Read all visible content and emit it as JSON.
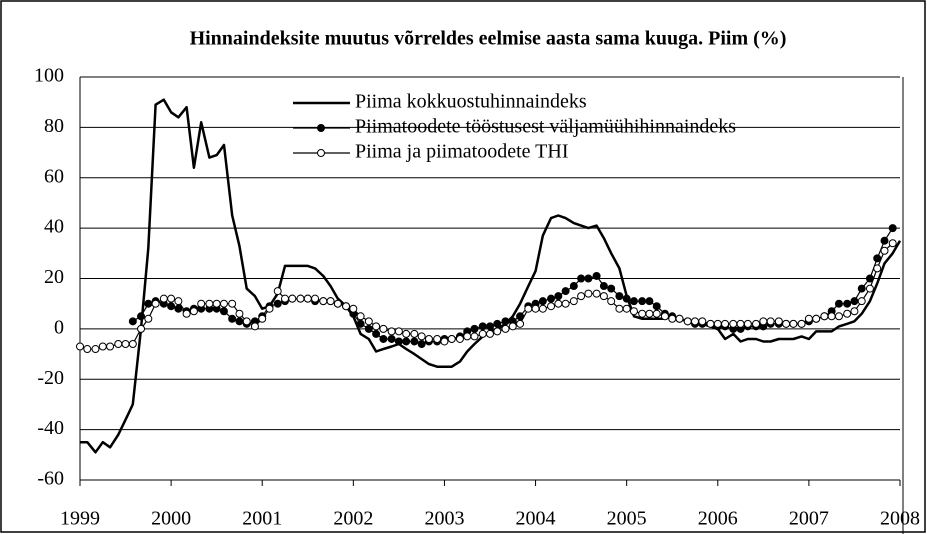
{
  "chart_data": {
    "type": "line",
    "title": "Hinnaindeksite muutus võrreldes eelmise aasta sama kuuga. Piim (%)",
    "x": [
      1999.0,
      1999.08,
      1999.17,
      1999.25,
      1999.33,
      1999.42,
      1999.5,
      1999.58,
      1999.67,
      1999.75,
      1999.83,
      1999.92,
      2000.0,
      2000.08,
      2000.17,
      2000.25,
      2000.33,
      2000.42,
      2000.5,
      2000.58,
      2000.67,
      2000.75,
      2000.83,
      2000.92,
      2001.0,
      2001.08,
      2001.17,
      2001.25,
      2001.33,
      2001.42,
      2001.5,
      2001.58,
      2001.67,
      2001.75,
      2001.83,
      2001.92,
      2002.0,
      2002.08,
      2002.17,
      2002.25,
      2002.33,
      2002.42,
      2002.5,
      2002.58,
      2002.67,
      2002.75,
      2002.83,
      2002.92,
      2003.0,
      2003.08,
      2003.17,
      2003.25,
      2003.33,
      2003.42,
      2003.5,
      2003.58,
      2003.67,
      2003.75,
      2003.83,
      2003.92,
      2004.0,
      2004.08,
      2004.17,
      2004.25,
      2004.33,
      2004.42,
      2004.5,
      2004.58,
      2004.67,
      2004.75,
      2004.83,
      2004.92,
      2005.0,
      2005.08,
      2005.17,
      2005.25,
      2005.33,
      2005.42,
      2005.5,
      2005.58,
      2005.67,
      2005.75,
      2005.83,
      2005.92,
      2006.0,
      2006.08,
      2006.17,
      2006.25,
      2006.33,
      2006.42,
      2006.5,
      2006.58,
      2006.67,
      2006.75,
      2006.83,
      2006.92,
      2007.0,
      2007.08,
      2007.17,
      2007.25,
      2007.33,
      2007.42,
      2007.5,
      2007.58,
      2007.67,
      2007.75,
      2007.83,
      2007.92,
      2008.0
    ],
    "series": [
      {
        "name": "Piima kokkuostuhinnaindeks",
        "color": "#000000",
        "line_width": 2.5,
        "values": [
          -45,
          -45,
          -49,
          -45,
          -47,
          -42,
          -36,
          -30,
          0,
          32,
          89,
          91,
          86,
          84,
          88,
          64,
          82,
          68,
          69,
          73,
          45,
          33,
          16,
          13,
          8,
          9,
          14,
          25,
          25,
          25,
          25,
          24,
          21,
          17,
          12,
          9,
          5,
          -2,
          -4,
          -9,
          -8,
          -7,
          -6,
          -8,
          -10,
          -12,
          -14,
          -15,
          -15,
          -15,
          -13,
          -9,
          -6,
          -3,
          -1,
          0,
          2,
          5,
          10,
          17,
          23,
          37,
          44,
          45,
          44,
          42,
          41,
          40,
          41,
          36,
          30,
          24,
          13,
          5,
          4,
          4,
          4,
          4,
          5,
          4,
          3,
          2,
          2,
          1,
          0,
          -4,
          -2,
          -5,
          -4,
          -4,
          -5,
          -5,
          -4,
          -4,
          -4,
          -3,
          -4,
          -1,
          -1,
          -1,
          1,
          2,
          3,
          6,
          11,
          18,
          26,
          30,
          35
        ]
      },
      {
        "name": "Piimatoodete tööstusest väljamüühihinnaindeks",
        "color": "#000000",
        "line_width": 1.2,
        "marker": "filled-circle",
        "values": [
          null,
          null,
          null,
          null,
          null,
          null,
          null,
          3,
          5,
          10,
          11,
          10,
          9,
          8,
          7,
          8,
          8,
          8,
          8,
          7,
          4,
          3,
          2,
          3,
          5,
          9,
          10,
          11,
          12,
          12,
          12,
          11,
          11,
          11,
          10,
          9,
          6,
          2,
          0,
          -2,
          -4,
          -4,
          -5,
          -5,
          -5,
          -6,
          -5,
          -5,
          -4,
          -4,
          -3,
          -1,
          0,
          1,
          1,
          2,
          3,
          3,
          5,
          9,
          10,
          11,
          12,
          13,
          15,
          17,
          20,
          20,
          21,
          17,
          16,
          13,
          12,
          11,
          11,
          11,
          9,
          6,
          5,
          4,
          3,
          2,
          2,
          2,
          1,
          1,
          0,
          0,
          1,
          1,
          1,
          2,
          2,
          2,
          2,
          2,
          3,
          4,
          5,
          7,
          10,
          10,
          11,
          16,
          20,
          28,
          35,
          40,
          null
        ]
      },
      {
        "name": "Piima ja piimatoodete THI",
        "color": "#000000",
        "line_width": 1.2,
        "marker": "open-circle",
        "values": [
          -7,
          -8,
          -8,
          -7,
          -7,
          -6,
          -6,
          -6,
          0,
          4,
          10,
          12,
          12,
          11,
          6,
          7,
          10,
          10,
          10,
          10,
          10,
          6,
          3,
          1,
          4,
          8,
          15,
          12,
          12,
          12,
          12,
          12,
          11,
          11,
          10,
          9,
          8,
          5,
          3,
          1,
          0,
          -1,
          -1,
          -2,
          -2,
          -3,
          -4,
          -4,
          -5,
          -4,
          -4,
          -3,
          -3,
          -2,
          -2,
          -1,
          0,
          1,
          2,
          8,
          8,
          8,
          9,
          10,
          10,
          11,
          13,
          14,
          14,
          13,
          11,
          8,
          8,
          7,
          6,
          6,
          6,
          5,
          4,
          4,
          3,
          3,
          3,
          2,
          2,
          2,
          2,
          2,
          2,
          2,
          3,
          3,
          3,
          2,
          2,
          2,
          4,
          4,
          5,
          5,
          5,
          6,
          7,
          11,
          16,
          24,
          31,
          34,
          null
        ]
      }
    ],
    "xlim": [
      1999,
      2008
    ],
    "xticks": [
      1999,
      2000,
      2001,
      2002,
      2003,
      2004,
      2005,
      2006,
      2007,
      2008
    ],
    "ylim": [
      -60,
      100
    ],
    "yticks": [
      -60,
      -40,
      -20,
      0,
      20,
      40,
      60,
      80,
      100
    ],
    "grid": true,
    "legend": "top"
  }
}
